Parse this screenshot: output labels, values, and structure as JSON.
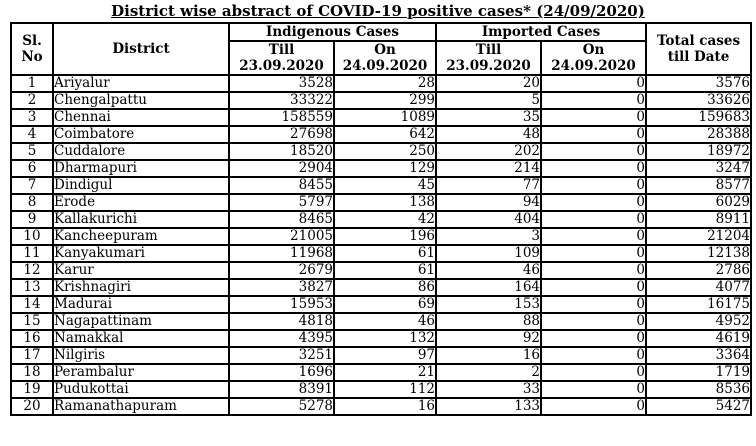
{
  "title": "District wise abstract of COVID-19 positive cases* (24/09/2020)",
  "table": {
    "headers": {
      "sl_no": "Sl.\nNo",
      "district": "District",
      "indigenous": "Indigenous Cases",
      "imported": "Imported Cases",
      "till": "Till\n23.09.2020",
      "on": "On\n24.09.2020",
      "total": "Total cases\ntill Date"
    },
    "rows": [
      [
        1,
        "Ariyalur",
        3528,
        28,
        20,
        0,
        3576
      ],
      [
        2,
        "Chengalpattu",
        33322,
        299,
        5,
        0,
        33626
      ],
      [
        3,
        "Chennai",
        158559,
        1089,
        35,
        0,
        159683
      ],
      [
        4,
        "Coimbatore",
        27698,
        642,
        48,
        0,
        28388
      ],
      [
        5,
        "Cuddalore",
        18520,
        250,
        202,
        0,
        18972
      ],
      [
        6,
        "Dharmapuri",
        2904,
        129,
        214,
        0,
        3247
      ],
      [
        7,
        "Dindigul",
        8455,
        45,
        77,
        0,
        8577
      ],
      [
        8,
        "Erode",
        5797,
        138,
        94,
        0,
        6029
      ],
      [
        9,
        "Kallakurichi",
        8465,
        42,
        404,
        0,
        8911
      ],
      [
        10,
        "Kancheepuram",
        21005,
        196,
        3,
        0,
        21204
      ],
      [
        11,
        "Kanyakumari",
        11968,
        61,
        109,
        0,
        12138
      ],
      [
        12,
        "Karur",
        2679,
        61,
        46,
        0,
        2786
      ],
      [
        13,
        "Krishnagiri",
        3827,
        86,
        164,
        0,
        4077
      ],
      [
        14,
        "Madurai",
        15953,
        69,
        153,
        0,
        16175
      ],
      [
        15,
        "Nagapattinam",
        4818,
        46,
        88,
        0,
        4952
      ],
      [
        16,
        "Namakkal",
        4395,
        132,
        92,
        0,
        4619
      ],
      [
        17,
        "Nilgiris",
        3251,
        97,
        16,
        0,
        3364
      ],
      [
        18,
        "Perambalur",
        1696,
        21,
        2,
        0,
        1719
      ],
      [
        19,
        "Pudukottai",
        8391,
        112,
        33,
        0,
        8536
      ],
      [
        20,
        "Ramanathapuram",
        5278,
        16,
        133,
        0,
        5427
      ]
    ]
  }
}
